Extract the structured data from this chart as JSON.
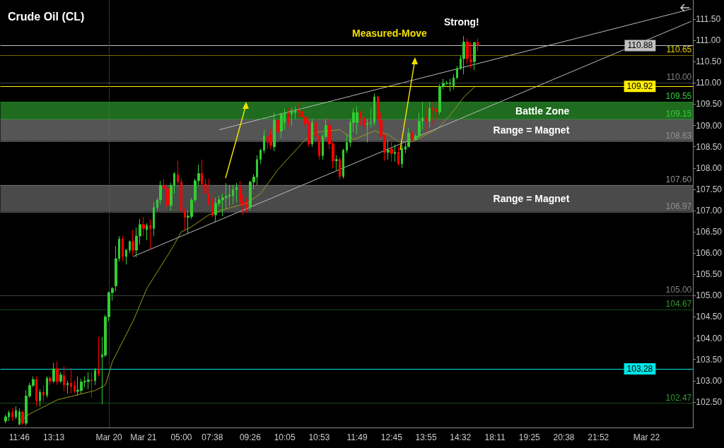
{
  "chart_data": {
    "type": "candlestick",
    "title": "Crude Oil (CL)",
    "categories": [
      null,
      null,
      null,
      null,
      null,
      "11:46",
      null,
      null,
      null,
      null,
      null,
      null,
      null,
      null,
      null,
      "13:13",
      null,
      null,
      null,
      null,
      null,
      null,
      null,
      null,
      null,
      null,
      null,
      null,
      null,
      null,
      null,
      "Mar 20",
      null,
      null,
      null,
      null,
      null,
      null,
      null,
      null,
      null,
      "Mar 21",
      null,
      null,
      null,
      null,
      null,
      null,
      null,
      null,
      null,
      null,
      "05:00",
      null,
      null,
      null,
      null,
      null,
      null,
      null,
      null,
      "07:38",
      null,
      null,
      null,
      null,
      null,
      null,
      null,
      null,
      null,
      null,
      "09:26",
      null,
      null,
      null,
      null,
      null,
      null,
      null,
      null,
      null,
      "10:05",
      null,
      null,
      null,
      null,
      null,
      null,
      null,
      null,
      null,
      "10:53",
      null,
      null,
      null,
      null,
      null,
      null,
      null,
      null,
      null,
      null,
      "11:49",
      null,
      null,
      null,
      null,
      null,
      null,
      null,
      null,
      null,
      "12:45",
      null,
      null,
      null,
      null,
      null,
      null,
      null,
      null,
      null,
      "13:55",
      null,
      null,
      null,
      null,
      null,
      null,
      null,
      null,
      null,
      "14:32",
      null,
      null,
      null,
      null,
      null,
      null,
      null,
      null,
      null,
      "18:11",
      null,
      null,
      null,
      null,
      null,
      null,
      null,
      null,
      null,
      "19:25",
      null,
      null,
      null,
      null,
      null,
      null,
      null,
      null,
      null,
      "20:38",
      null,
      null,
      null,
      null,
      null,
      null,
      null,
      null,
      null,
      "21:52",
      null,
      null,
      null,
      null,
      null,
      null,
      null,
      null,
      null,
      null,
      null,
      null,
      null,
      "Mar 22",
      null,
      null,
      null,
      null,
      null,
      null,
      null,
      null,
      null,
      null,
      null,
      null,
      null
    ],
    "ylim": [
      101.9,
      111.95
    ],
    "yticks": [
      {
        "value": 102.5,
        "label": "102.50"
      },
      {
        "value": 103,
        "label": "103.00"
      },
      {
        "value": 103.5,
        "label": "103.50"
      },
      {
        "value": 104,
        "label": "104.00"
      },
      {
        "value": 104.5,
        "label": "104.50"
      },
      {
        "value": 105,
        "label": "105.00"
      },
      {
        "value": 105.5,
        "label": "105.50"
      },
      {
        "value": 106,
        "label": "106.00"
      },
      {
        "value": 106.5,
        "label": "106.50"
      },
      {
        "value": 107,
        "label": "107.00"
      },
      {
        "value": 107.5,
        "label": "107.50"
      },
      {
        "value": 108,
        "label": "108.00"
      },
      {
        "value": 108.5,
        "label": "108.50"
      },
      {
        "value": 109,
        "label": "109.00"
      },
      {
        "value": 109.5,
        "label": "109.50"
      },
      {
        "value": 110,
        "label": "110.00"
      },
      {
        "value": 110.5,
        "label": "110.50"
      },
      {
        "value": 111,
        "label": "111.00"
      },
      {
        "value": 111.5,
        "label": "111.50"
      }
    ],
    "series": [
      {
        "type": "candlestick",
        "ohlc": [
          null,
          [
            102.05,
            102.2,
            102.0,
            102.15
          ],
          [
            102.15,
            102.3,
            102.05,
            102.25
          ],
          [
            102.25,
            102.35,
            102.05,
            102.15
          ],
          [
            102.15,
            102.4,
            102.1,
            102.3
          ],
          [
            101.98,
            102.35,
            101.95,
            102.27
          ],
          [
            102.26,
            102.3,
            101.95,
            102.0
          ],
          [
            102.0,
            102.78,
            101.95,
            102.64
          ],
          [
            102.64,
            102.95,
            102.6,
            102.89
          ],
          [
            102.89,
            103.1,
            102.85,
            103.03
          ],
          [
            103.03,
            103.1,
            102.4,
            102.53
          ],
          [
            102.53,
            102.8,
            102.39,
            102.73
          ],
          [
            102.73,
            102.9,
            102.5,
            102.66
          ],
          [
            102.66,
            103.1,
            102.6,
            103.06
          ],
          [
            103.06,
            103.1,
            102.9,
            102.99
          ],
          [
            102.99,
            103.42,
            102.95,
            103.28
          ],
          [
            103.28,
            103.45,
            102.9,
            102.98
          ],
          [
            102.99,
            103.2,
            102.95,
            103.14
          ],
          [
            103.12,
            103.35,
            102.75,
            102.9
          ],
          [
            102.9,
            103.0,
            102.7,
            102.94
          ],
          [
            102.94,
            103.3,
            102.7,
            102.86
          ],
          [
            102.88,
            103.0,
            102.7,
            102.75
          ],
          [
            102.75,
            103.1,
            102.65,
            102.78
          ],
          [
            102.77,
            103.05,
            102.7,
            102.97
          ],
          [
            102.97,
            103.1,
            102.85,
            102.99
          ],
          [
            102.98,
            103.2,
            102.8,
            103.02
          ],
          [
            103.02,
            103.2,
            102.6,
            103.0
          ],
          [
            103.0,
            103.3,
            102.9,
            103.24
          ],
          [
            103.24,
            104.03,
            103.1,
            103.17
          ],
          [
            103.56,
            104.03,
            102.45,
            103.61
          ],
          [
            103.6,
            104.55,
            103.55,
            104.5
          ],
          [
            104.5,
            105.1,
            104.4,
            105.07
          ],
          [
            105.07,
            105.2,
            104.88,
            105.17
          ],
          [
            105.23,
            106.17,
            105.1,
            105.87
          ],
          [
            105.87,
            106.4,
            105.8,
            106.33
          ],
          [
            106.33,
            106.4,
            105.8,
            105.92
          ],
          [
            105.92,
            106.1,
            105.73,
            106.07
          ],
          [
            106.07,
            106.3,
            106.0,
            106.27
          ],
          [
            106.27,
            106.55,
            105.95,
            106.07
          ],
          [
            106.07,
            106.6,
            105.9,
            106.4
          ],
          [
            106.4,
            106.8,
            106.2,
            106.67
          ],
          [
            106.67,
            106.85,
            106.4,
            106.58
          ],
          [
            106.55,
            106.7,
            106.3,
            106.65
          ],
          [
            106.65,
            106.8,
            106.1,
            106.58
          ],
          [
            106.58,
            107.2,
            106.4,
            107.07
          ],
          [
            107.07,
            107.3,
            107.0,
            107.25
          ],
          [
            107.25,
            107.7,
            107.15,
            107.59
          ],
          [
            107.59,
            107.75,
            107.3,
            107.52
          ],
          [
            107.52,
            107.6,
            107.05,
            107.12
          ],
          [
            107.12,
            107.65,
            107.0,
            107.59
          ],
          [
            107.59,
            107.9,
            107.4,
            107.87
          ],
          [
            107.84,
            108.17,
            107.6,
            107.67
          ],
          [
            107.67,
            107.75,
            106.95,
            106.99
          ],
          [
            106.99,
            107.05,
            106.55,
            106.84
          ],
          [
            106.84,
            107.0,
            106.45,
            106.87
          ],
          [
            106.86,
            107.3,
            106.8,
            107.25
          ],
          [
            107.25,
            107.75,
            107.2,
            107.7
          ],
          [
            107.7,
            108.08,
            107.6,
            107.87
          ],
          [
            107.87,
            108.2,
            107.5,
            107.62
          ],
          [
            107.62,
            107.75,
            107.3,
            107.4
          ],
          [
            107.4,
            107.75,
            107.1,
            107.17
          ],
          [
            107.2,
            107.3,
            106.85,
            106.9
          ],
          [
            106.9,
            107.3,
            106.72,
            107.17
          ],
          [
            107.17,
            107.35,
            107.1,
            107.25
          ],
          [
            107.25,
            107.4,
            106.87,
            107.3
          ],
          [
            107.3,
            107.65,
            107.05,
            107.33
          ],
          [
            107.33,
            107.6,
            107.1,
            107.37
          ],
          [
            107.35,
            107.6,
            107.15,
            107.49
          ],
          [
            107.49,
            107.65,
            107.2,
            107.54
          ],
          [
            107.54,
            107.7,
            107.1,
            107.2
          ],
          [
            107.2,
            107.4,
            106.9,
            107.15
          ],
          [
            107.15,
            107.3,
            106.95,
            107.08
          ],
          [
            107.08,
            107.7,
            107.0,
            107.67
          ],
          [
            107.67,
            107.85,
            107.5,
            107.79
          ],
          [
            107.79,
            108.3,
            107.6,
            108.2
          ],
          [
            108.2,
            108.45,
            108.1,
            108.42
          ],
          [
            108.42,
            108.9,
            108.35,
            108.75
          ],
          [
            108.75,
            109.05,
            108.45,
            108.6
          ],
          [
            108.79,
            108.9,
            108.45,
            108.54
          ],
          [
            108.5,
            109.3,
            108.4,
            109.12
          ],
          [
            109.12,
            109.3,
            108.6,
            108.84
          ],
          [
            108.87,
            109.3,
            108.7,
            109.25
          ],
          [
            109.07,
            109.4,
            108.9,
            109.3
          ],
          [
            109.27,
            109.42,
            108.95,
            109.07
          ],
          [
            109.27,
            109.42,
            109.0,
            109.32
          ],
          [
            109.3,
            109.45,
            109.15,
            109.35
          ],
          [
            109.35,
            109.54,
            109.2,
            109.33
          ],
          [
            109.33,
            109.55,
            109.1,
            109.2
          ],
          [
            109.2,
            109.2,
            108.95,
            109.04
          ],
          [
            109.07,
            109.15,
            108.5,
            108.57
          ],
          [
            108.57,
            109.15,
            108.5,
            109.07
          ],
          [
            109.07,
            109.15,
            108.7,
            108.74
          ],
          [
            108.74,
            108.8,
            108.2,
            108.29
          ],
          [
            108.29,
            108.8,
            108.2,
            108.74
          ],
          [
            108.74,
            109.15,
            108.7,
            109.0
          ],
          [
            109.0,
            109.2,
            108.45,
            108.57
          ],
          [
            108.57,
            108.6,
            107.99,
            108.17
          ],
          [
            108.17,
            108.3,
            107.95,
            108.2
          ],
          [
            108.2,
            108.25,
            107.73,
            107.8
          ],
          [
            107.8,
            108.45,
            107.75,
            108.42
          ],
          [
            108.42,
            108.8,
            108.35,
            108.6
          ],
          [
            108.6,
            109.15,
            108.5,
            109.07
          ],
          [
            109.07,
            109.4,
            108.85,
            109.3
          ],
          [
            109.07,
            109.45,
            108.8,
            109.3
          ],
          [
            109.3,
            109.35,
            109.0,
            109.19
          ],
          [
            109.17,
            109.25,
            108.9,
            109.0
          ],
          [
            109.02,
            109.15,
            108.6,
            109.05
          ],
          [
            109.05,
            109.4,
            108.95,
            109.07
          ],
          [
            109.07,
            109.75,
            109.0,
            109.67
          ],
          [
            109.67,
            109.7,
            109.0,
            109.15
          ],
          [
            109.12,
            109.3,
            108.7,
            108.75
          ],
          [
            108.75,
            108.8,
            108.17,
            108.37
          ],
          [
            108.37,
            108.65,
            108.2,
            108.42
          ],
          [
            108.45,
            108.65,
            108.15,
            108.34
          ],
          [
            108.34,
            108.55,
            108.15,
            108.37
          ],
          [
            108.37,
            108.5,
            108.05,
            108.1
          ],
          [
            108.1,
            108.55,
            108.0,
            108.46
          ],
          [
            108.44,
            108.6,
            108.35,
            108.5
          ],
          [
            108.5,
            108.95,
            108.5,
            108.82
          ],
          [
            108.82,
            108.9,
            108.6,
            108.67
          ],
          [
            108.67,
            108.8,
            108.65,
            108.75
          ],
          [
            108.75,
            109.3,
            108.7,
            109.1
          ],
          [
            109.1,
            109.55,
            108.9,
            109.18
          ],
          [
            109.18,
            109.45,
            108.85,
            109.1
          ],
          [
            109.1,
            109.55,
            108.95,
            109.4
          ],
          [
            109.4,
            109.55,
            109.0,
            109.37
          ],
          [
            109.38,
            109.5,
            109.1,
            109.32
          ],
          [
            109.32,
            109.97,
            109.25,
            109.92
          ],
          [
            109.92,
            110.1,
            109.85,
            109.99
          ],
          [
            109.99,
            110.05,
            109.95,
            110.0
          ],
          [
            109.98,
            110.1,
            109.8,
            110.0
          ],
          [
            109.92,
            110.2,
            109.85,
            110.12
          ],
          [
            110.12,
            110.4,
            110.1,
            110.34
          ],
          [
            110.34,
            110.65,
            110.3,
            110.57
          ],
          [
            110.57,
            111.1,
            110.2,
            110.96
          ],
          [
            110.96,
            111.05,
            110.45,
            110.57
          ],
          [
            110.54,
            110.95,
            110.35,
            110.5
          ],
          [
            110.5,
            110.97,
            110.3,
            110.95
          ],
          [
            110.96,
            111.05,
            110.75,
            110.88
          ],
          null,
          null,
          null,
          null,
          null,
          null,
          null,
          null,
          null,
          null,
          null,
          null,
          null,
          null,
          null,
          null,
          null,
          null,
          null,
          null,
          null,
          null,
          null,
          null,
          null,
          null,
          null,
          null,
          null,
          null,
          null,
          null,
          null,
          null,
          null,
          null,
          null,
          null,
          null,
          null,
          null,
          null,
          null,
          null,
          null,
          null,
          null,
          null,
          null,
          null,
          null,
          null,
          null,
          null,
          null,
          null,
          null,
          null,
          null,
          null,
          null,
          null
        ],
        "colors": [
          null,
          "#33cc33",
          "#33cc33",
          "#ff0000",
          "#33cc33",
          "#33cc33",
          "#ff0000",
          "#33cc33",
          "#33cc33",
          "#33cc33",
          "#ff0000",
          "#33cc33",
          "#ff0000",
          "#33cc33",
          "#ff0000",
          "#33cc33",
          "#ff0000",
          "#33cc33",
          "#ff0000",
          "#33cc33",
          "#ff0000",
          "#ff0000",
          "#33cc33",
          "#33cc33",
          "#33cc33",
          "#33cc33",
          "#ff0000",
          "#33cc33",
          "#ff0000",
          "#33cc33",
          "#33cc33",
          "#33cc33",
          "#33cc33",
          "#33cc33",
          "#33cc33",
          "#ff0000",
          "#33cc33",
          "#33cc33",
          "#ff0000",
          "#33cc33",
          "#33cc33",
          "#ff0000",
          "#33cc33",
          "#ff0000",
          "#33cc33",
          "#33cc33",
          "#33cc33",
          "#ff0000",
          "#ff0000",
          "#33cc33",
          "#33cc33",
          "#ff0000",
          "#ff0000",
          "#ff0000",
          "#33cc33",
          "#33cc33",
          "#33cc33",
          "#33cc33",
          "#ff0000",
          "#ff0000",
          "#ff0000",
          "#ff0000",
          "#33cc33",
          "#33cc33",
          "#33cc33",
          "#33cc33",
          "#33cc33",
          "#33cc33",
          "#33cc33",
          "#ff0000",
          "#ff0000",
          "#ff0000",
          "#33cc33",
          "#33cc33",
          "#33cc33",
          "#33cc33",
          "#33cc33",
          "#ff0000",
          "#ff0000",
          "#33cc33",
          "#ff0000",
          "#33cc33",
          "#33cc33",
          "#ff0000",
          "#33cc33",
          "#33cc33",
          "#ff0000",
          "#ff0000",
          "#ff0000",
          "#ff0000",
          "#33cc33",
          "#ff0000",
          "#ff0000",
          "#33cc33",
          "#33cc33",
          "#ff0000",
          "#ff0000",
          "#33cc33",
          "#ff0000",
          "#33cc33",
          "#33cc33",
          "#33cc33",
          "#33cc33",
          "#33cc33",
          "#ff0000",
          "#ff0000",
          "#33cc33",
          "#33cc33",
          "#33cc33",
          "#ff0000",
          "#ff0000",
          "#ff0000",
          "#33cc33",
          "#ff0000",
          "#33cc33",
          "#ff0000",
          "#33cc33",
          "#33cc33",
          "#33cc33",
          "#ff0000",
          "#33cc33",
          "#33cc33",
          "#33cc33",
          "#ff0000",
          "#33cc33",
          "#ff0000",
          "#ff0000",
          "#33cc33",
          "#33cc33",
          "#33cc33",
          "#33cc33",
          "#33cc33",
          "#33cc33",
          "#33cc33",
          "#33cc33",
          "#ff0000",
          "#ff0000",
          "#33cc33",
          "#ff0000",
          null,
          null,
          null,
          null,
          null,
          null,
          null,
          null,
          null,
          null,
          null,
          null,
          null,
          null,
          null,
          null,
          null,
          null,
          null,
          null,
          null,
          null,
          null,
          null,
          null,
          null,
          null,
          null,
          null,
          null,
          null,
          null,
          null,
          null,
          null,
          null,
          null,
          null,
          null,
          null,
          null,
          null,
          null,
          null,
          null,
          null,
          null,
          null,
          null,
          null,
          null,
          null,
          null,
          null,
          null,
          null,
          null,
          null,
          null,
          null,
          null,
          null
        ]
      },
      {
        "type": "line",
        "color": "#9a9a1a",
        "values": [
          null,
          null,
          null,
          null,
          null,
          102.05,
          null,
          null,
          102.22,
          null,
          null,
          null,
          null,
          null,
          null,
          null,
          102.55,
          null,
          null,
          null,
          102.63,
          null,
          null,
          null,
          null,
          null,
          null,
          102.77,
          null,
          null,
          102.9,
          null,
          103.45,
          null,
          null,
          null,
          null,
          null,
          104.4,
          null,
          null,
          null,
          105.17,
          null,
          null,
          null,
          null,
          null,
          null,
          106.07,
          null,
          null,
          106.5,
          null,
          null,
          106.62,
          null,
          null,
          null,
          null,
          106.9,
          null,
          null,
          null,
          null,
          107.04,
          null,
          null,
          null,
          null,
          null,
          107.17,
          null,
          null,
          null,
          107.4,
          null,
          null,
          null,
          null,
          107.96,
          null,
          null,
          null,
          null,
          null,
          null,
          null,
          108.67,
          null,
          null,
          108.84,
          null,
          null,
          null,
          null,
          null,
          null,
          108.9,
          null,
          null,
          null,
          108.67,
          null,
          null,
          null,
          null,
          null,
          108.87,
          null,
          null,
          null,
          108.79,
          null,
          null,
          108.62,
          null,
          null,
          null,
          108.62,
          null,
          null,
          null,
          null,
          null,
          null,
          108.9,
          null,
          null,
          null,
          109.24,
          null,
          null,
          null,
          109.67,
          null,
          null,
          109.9,
          null,
          null,
          null,
          null,
          null,
          null,
          null,
          null,
          null,
          null,
          null,
          null,
          null,
          null,
          null,
          null,
          null,
          null,
          null,
          null,
          null,
          null,
          null,
          null,
          null,
          null,
          null,
          null,
          null,
          null,
          null,
          null,
          null,
          null,
          null,
          null,
          null,
          null,
          null,
          null,
          null,
          null,
          null,
          null,
          null,
          null,
          null,
          null,
          null,
          null,
          null,
          null,
          null,
          null,
          null,
          null,
          null,
          null,
          null,
          null,
          null,
          null,
          null
        ]
      },
      {
        "type": "line",
        "color": "#bbbbbb",
        "values": [
          null,
          null,
          null,
          null,
          null,
          null,
          null,
          null,
          null,
          null,
          null,
          null,
          null,
          null,
          null,
          null,
          null,
          null,
          null,
          null,
          null,
          null,
          null,
          null,
          null,
          null,
          null,
          null,
          null,
          null,
          null,
          null,
          null,
          null,
          null,
          null,
          null,
          null,
          105.92,
          null,
          null,
          null,
          null,
          null,
          null,
          null,
          null,
          null,
          null,
          null,
          null,
          null,
          null,
          null,
          null,
          null,
          null,
          null,
          null,
          null,
          null,
          null,
          null,
          null,
          null,
          null,
          null,
          null,
          null,
          null,
          null,
          null,
          null,
          null,
          null,
          null,
          null,
          null,
          null,
          null,
          null,
          null,
          null,
          null,
          null,
          null,
          null,
          null,
          null,
          null,
          null,
          null,
          null,
          null,
          null,
          null,
          null,
          null,
          null,
          null,
          null,
          null,
          null,
          null,
          null,
          null,
          null,
          null,
          null,
          null,
          null,
          null,
          null,
          null,
          null,
          null,
          null,
          null,
          null,
          null,
          null,
          null,
          null,
          null,
          null,
          null,
          null,
          null,
          null,
          null,
          null,
          null,
          null,
          null,
          null,
          null,
          null,
          null,
          null,
          null,
          null,
          null,
          null,
          null,
          null,
          null,
          null,
          null,
          null,
          null,
          null,
          null,
          null,
          null,
          null,
          null,
          null,
          null,
          null,
          null,
          null,
          null,
          null,
          null,
          null,
          null,
          null,
          null,
          null,
          null,
          null,
          null,
          null,
          null,
          null,
          null,
          null,
          null,
          null,
          null,
          null,
          null,
          null,
          null,
          null,
          null,
          null,
          null,
          null,
          null,
          null,
          null,
          null,
          null,
          null,
          null,
          null,
          null,
          null,
          null,
          111.45
        ]
      },
      {
        "type": "line",
        "color": "#bbbbbb",
        "values": [
          null,
          null,
          null,
          null,
          null,
          null,
          null,
          null,
          null,
          null,
          null,
          null,
          null,
          null,
          null,
          null,
          null,
          null,
          null,
          null,
          null,
          null,
          null,
          null,
          null,
          null,
          null,
          null,
          null,
          null,
          null,
          null,
          null,
          null,
          null,
          null,
          null,
          null,
          null,
          null,
          null,
          null,
          null,
          null,
          null,
          null,
          null,
          null,
          null,
          null,
          null,
          null,
          null,
          null,
          null,
          null,
          null,
          null,
          null,
          null,
          null,
          null,
          null,
          108.9,
          null,
          null,
          null,
          null,
          null,
          null,
          null,
          null,
          null,
          null,
          null,
          null,
          null,
          null,
          null,
          null,
          null,
          null,
          null,
          null,
          null,
          null,
          null,
          null,
          null,
          null,
          null,
          null,
          null,
          null,
          null,
          null,
          null,
          null,
          null,
          null,
          null,
          null,
          null,
          null,
          null,
          null,
          null,
          null,
          null,
          null,
          null,
          null,
          null,
          null,
          null,
          null,
          null,
          null,
          null,
          null,
          null,
          null,
          null,
          null,
          null,
          null,
          null,
          null,
          null,
          null,
          null,
          null,
          null,
          null,
          null,
          null,
          null,
          null,
          null,
          null,
          null,
          null,
          null,
          null,
          null,
          null,
          null,
          null,
          null,
          null,
          null,
          null,
          null,
          null,
          null,
          null,
          null,
          null,
          null,
          null,
          null,
          null,
          null,
          null,
          null,
          null,
          null,
          null,
          null,
          null,
          null,
          null,
          null,
          null,
          null,
          null,
          null,
          null,
          null,
          null,
          null,
          null,
          null,
          null,
          null,
          null,
          null,
          null,
          null,
          null,
          null,
          null,
          null,
          null,
          null,
          null,
          null,
          null,
          null,
          null,
          111.74
        ]
      }
    ],
    "bands": [
      {
        "axis": "y",
        "from": 109.15,
        "to": 109.55,
        "label": "Battle Zone",
        "color": "#1f6b1f"
      },
      {
        "axis": "y",
        "from": 108.63,
        "to": 109.15,
        "label": "Range = Magnet",
        "color": "#555555"
      },
      {
        "axis": "y",
        "from": 106.97,
        "to": 107.6,
        "label": "Range = Magnet",
        "color": "#4a4a4a"
      }
    ],
    "ref_lines": [
      {
        "axis": "y",
        "value": 110.88,
        "label": "110.88",
        "color": "#c0c0c0",
        "line_style": "solid"
      },
      {
        "axis": "y",
        "value": 110.65,
        "label": "110.65",
        "color": "#e6d200",
        "line_style": "dotted"
      },
      {
        "axis": "y",
        "value": 110.0,
        "label": "110.00",
        "color": "#808080",
        "line_style": "dotted"
      },
      {
        "axis": "y",
        "value": 109.92,
        "label": "109.92",
        "color": "#ffee00",
        "line_style": "solid"
      },
      {
        "axis": "y",
        "value": 109.55,
        "label": "109.55",
        "color": "#33cc33",
        "line_style": "dotted"
      },
      {
        "axis": "y",
        "value": 109.15,
        "label": "109.15",
        "color": "#33cc33",
        "line_style": "dotted"
      },
      {
        "axis": "y",
        "value": 108.63,
        "label": "108.63",
        "color": "#909090",
        "line_style": "dotted"
      },
      {
        "axis": "y",
        "value": 107.6,
        "label": "107.60",
        "color": "#909090",
        "line_style": "dotted"
      },
      {
        "axis": "y",
        "value": 106.97,
        "label": "106.97",
        "color": "#909090",
        "line_style": "dotted"
      },
      {
        "axis": "y",
        "value": 105.0,
        "label": "105.00",
        "color": "#808080",
        "line_style": "dotted"
      },
      {
        "axis": "y",
        "value": 104.67,
        "label": "104.67",
        "color": "#2e9b2e",
        "line_style": "dotted"
      },
      {
        "axis": "y",
        "value": 103.28,
        "label": "103.28",
        "color": "#00e5e5",
        "line_style": "solid"
      },
      {
        "axis": "y",
        "value": 102.47,
        "label": "102.47",
        "color": "#2e9b2e",
        "line_style": "dotted"
      },
      {
        "axis": "x",
        "value": "Mar 20",
        "label": null,
        "color": "#666666",
        "line_style": "dotted"
      }
    ],
    "annotations": [
      "Strong!",
      {
        "text": "Measured-Move",
        "y": 110.65
      }
    ],
    "grid": false
  }
}
